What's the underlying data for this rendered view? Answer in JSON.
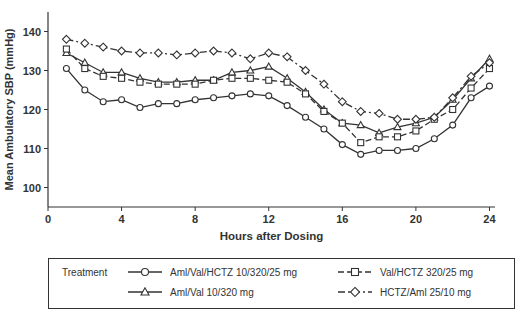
{
  "chart_data": {
    "type": "line",
    "x_label": "Hours after Dosing",
    "y_label": "Mean Ambulatory SBP (mmHg)",
    "legend_title": "Treatment",
    "legend": "bottom",
    "grid": false,
    "x": [
      1,
      2,
      3,
      4,
      5,
      6,
      7,
      8,
      9,
      10,
      11,
      12,
      13,
      14,
      15,
      16,
      17,
      18,
      19,
      20,
      21,
      22,
      23,
      24
    ],
    "xlim": [
      0,
      24.3
    ],
    "xticks": [
      0,
      4,
      8,
      12,
      16,
      20,
      24
    ],
    "ylim": [
      95,
      145
    ],
    "yticks": [
      100,
      110,
      120,
      130,
      140
    ],
    "series": [
      {
        "name": "Aml/Val/HCTZ 10/320/25 mg",
        "color": "#333333",
        "marker": "circle",
        "line_style": "solid",
        "values": [
          130.5,
          125,
          122,
          122.5,
          120.5,
          121.5,
          121.5,
          122.5,
          123,
          123.5,
          124,
          123.5,
          121,
          118,
          115,
          111,
          108.5,
          109.5,
          109.5,
          110,
          112.5,
          116,
          123,
          126
        ]
      },
      {
        "name": "Aml/Val 10/320 mg",
        "color": "#333333",
        "marker": "triangle",
        "line_style": "solid",
        "values": [
          134.5,
          132,
          129.5,
          129.5,
          128,
          127,
          127,
          127.5,
          127.5,
          129.5,
          130,
          131,
          128,
          124.5,
          120,
          116.5,
          116,
          114,
          115.5,
          116.5,
          118,
          122.5,
          128,
          133
        ]
      },
      {
        "name": "Val/HCTZ 320/25 mg",
        "color": "#333333",
        "marker": "square",
        "line_style": "dashed",
        "values": [
          135.5,
          130.5,
          128.5,
          128,
          127,
          126.5,
          126.5,
          126.5,
          127.5,
          128,
          128,
          127.5,
          127,
          124,
          119.5,
          116.5,
          111.5,
          113,
          113,
          114.5,
          117.5,
          120,
          125.5,
          130.5
        ]
      },
      {
        "name": "HCTZ/Aml 25/10 mg",
        "color": "#333333",
        "marker": "diamond",
        "line_style": "dashdot",
        "values": [
          138,
          137,
          136,
          135,
          134.5,
          134.5,
          134,
          134.5,
          135,
          134.5,
          133,
          134.5,
          133.5,
          130,
          126.5,
          122,
          119.5,
          119,
          117.5,
          117.5,
          118,
          123,
          128.5,
          132
        ]
      }
    ]
  }
}
